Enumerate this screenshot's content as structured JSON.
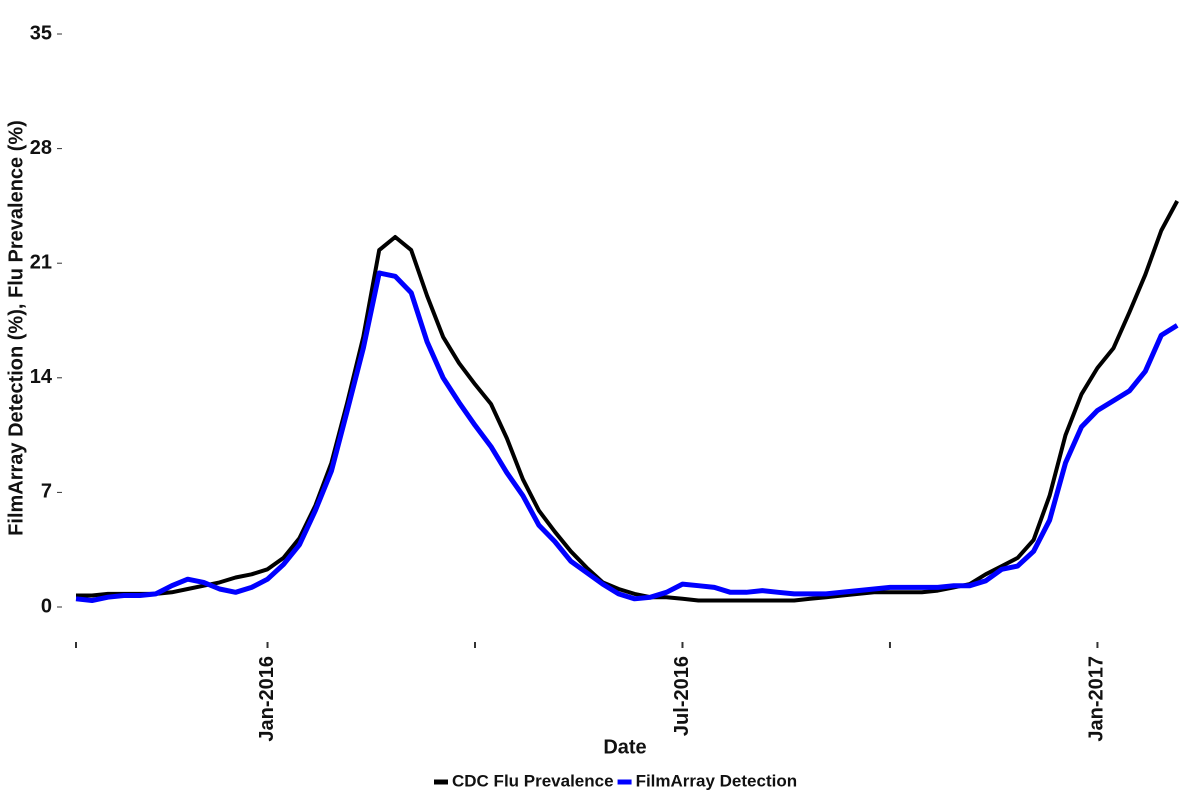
{
  "chart_data": {
    "type": "line",
    "x_label": "Date",
    "y_label": "FilmArray Detection (%), Flu Prevalence (%)",
    "categories": [
      null,
      null,
      null,
      null,
      null,
      null,
      null,
      null,
      null,
      null,
      null,
      null,
      "Jan-2016",
      null,
      null,
      null,
      null,
      null,
      null,
      null,
      null,
      null,
      null,
      null,
      null,
      null,
      null,
      null,
      null,
      null,
      null,
      null,
      null,
      null,
      null,
      null,
      null,
      null,
      "Jul-2016",
      null,
      null,
      null,
      null,
      null,
      null,
      null,
      null,
      null,
      null,
      null,
      null,
      null,
      null,
      null,
      null,
      null,
      null,
      null,
      null,
      null,
      null,
      null,
      null,
      null,
      "Jan-2017",
      null,
      null,
      null,
      null,
      null
    ],
    "series": [
      {
        "name": "CDC Flu Prevalence",
        "color": "#000000",
        "values": [
          0.7,
          0.7,
          0.8,
          0.8,
          0.8,
          0.8,
          0.9,
          1.1,
          1.3,
          1.5,
          1.8,
          2.0,
          2.3,
          3.0,
          4.2,
          6.2,
          8.8,
          12.5,
          16.5,
          21.8,
          22.6,
          21.8,
          19.0,
          16.5,
          14.9,
          13.6,
          12.4,
          10.3,
          7.8,
          5.9,
          4.6,
          3.4,
          2.4,
          1.5,
          1.1,
          0.8,
          0.6,
          0.6,
          0.5,
          0.4,
          0.4,
          0.4,
          0.4,
          0.4,
          0.4,
          0.4,
          0.5,
          0.6,
          0.7,
          0.8,
          0.9,
          0.9,
          0.9,
          0.9,
          1.0,
          1.2,
          1.4,
          2.0,
          2.5,
          3.0,
          4.1,
          6.8,
          10.5,
          13.0,
          14.6,
          15.8,
          18.0,
          20.3,
          23.0,
          24.8
        ]
      },
      {
        "name": "FilmArray Detection",
        "color": "#0000ff",
        "values": [
          0.5,
          0.4,
          0.6,
          0.7,
          0.7,
          0.8,
          1.3,
          1.7,
          1.5,
          1.1,
          0.9,
          1.2,
          1.7,
          2.6,
          3.8,
          5.9,
          8.3,
          12.0,
          15.8,
          20.4,
          20.2,
          19.2,
          16.2,
          14.0,
          12.5,
          11.1,
          9.8,
          8.2,
          6.8,
          5.0,
          4.0,
          2.8,
          2.1,
          1.4,
          0.8,
          0.5,
          0.6,
          0.9,
          1.4,
          1.3,
          1.2,
          0.9,
          0.9,
          1.0,
          0.9,
          0.8,
          0.8,
          0.8,
          0.9,
          1.0,
          1.1,
          1.2,
          1.2,
          1.2,
          1.2,
          1.3,
          1.3,
          1.6,
          2.3,
          2.5,
          3.4,
          5.3,
          8.8,
          11.0,
          12.0,
          12.6,
          13.2,
          14.4,
          16.6,
          17.2
        ]
      }
    ],
    "ylim": [
      0,
      35
    ],
    "yticks": [
      0,
      7,
      14,
      21,
      28,
      35
    ],
    "grid": false,
    "legend": "bottom"
  }
}
